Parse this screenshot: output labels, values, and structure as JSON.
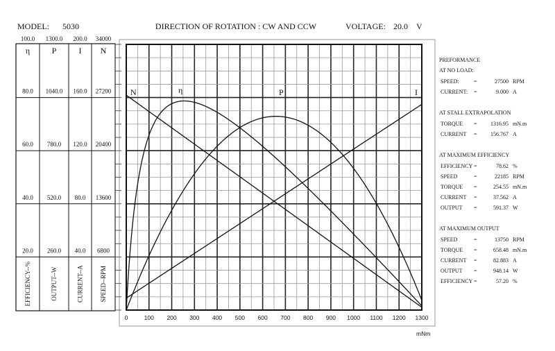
{
  "header": {
    "model_label": "MODEL:",
    "model_value": "5030",
    "direction": "DIRECTION OF ROTATION : CW AND CCW",
    "voltage_label": "VOLTAGE:",
    "voltage_value": "20.0",
    "voltage_unit": "V"
  },
  "left_axes": [
    {
      "max": "100.0",
      "symbol": "η",
      "ticks": [
        "80.0",
        "60.0",
        "40.0",
        "20.0"
      ],
      "label": "EFFICIENCY--%"
    },
    {
      "max": "1300.0",
      "symbol": "P",
      "ticks": [
        "1040.0",
        "780.0",
        "520.0",
        "260.0"
      ],
      "label": "OUTPUT--W"
    },
    {
      "max": "200.0",
      "symbol": "I",
      "ticks": [
        "160.0",
        "120.0",
        "80.0",
        "40.0"
      ],
      "label": "CURRENT--A"
    },
    {
      "max": "34000",
      "symbol": "N",
      "ticks": [
        "27200",
        "20400",
        "13600",
        "6800"
      ],
      "label": "SPEED--RPM"
    }
  ],
  "performance": {
    "title": "PREFORMANCE",
    "sections": [
      {
        "heading": "AT NO LOAD:",
        "rows": [
          {
            "label": "SPEED:",
            "eq": "=",
            "value": "27500",
            "unit": "RPM"
          },
          {
            "label": "CURRENT:",
            "eq": "=",
            "value": "9.000",
            "unit": "A"
          }
        ]
      },
      {
        "heading": "AT STALL EXTRAPOLATION",
        "rows": [
          {
            "label": "TORQUE",
            "eq": "=",
            "value": "1316.95",
            "unit": "mN.m"
          },
          {
            "label": "CURRENT",
            "eq": "=",
            "value": "156.767",
            "unit": "A"
          }
        ]
      },
      {
        "heading": "AT MAXIMUM EFFICIENCY",
        "rows": [
          {
            "label": "EFFICIENCY",
            "eq": "=",
            "value": "78.62",
            "unit": "%"
          },
          {
            "label": "SPEED",
            "eq": "=",
            "value": "22185",
            "unit": "RPM"
          },
          {
            "label": "TORQUE",
            "eq": "=",
            "value": "254.55",
            "unit": "mN.m"
          },
          {
            "label": "CURRENT",
            "eq": "=",
            "value": "37.562",
            "unit": "A"
          },
          {
            "label": "OUTPUT",
            "eq": "=",
            "value": "591.37",
            "unit": "W"
          }
        ]
      },
      {
        "heading": "AT MAXIMUM OUTPUT",
        "rows": [
          {
            "label": "SPEED",
            "eq": "=",
            "value": "13750",
            "unit": "RPM"
          },
          {
            "label": "TORQUE",
            "eq": "=",
            "value": "658.48",
            "unit": "mN.m"
          },
          {
            "label": "CURRENT",
            "eq": "=",
            "value": "82.883",
            "unit": "A"
          },
          {
            "label": "OUTPUT",
            "eq": "=",
            "value": "948.14",
            "unit": "W"
          },
          {
            "label": "EFFICIENCY",
            "eq": "=",
            "value": "57.20",
            "unit": "%"
          }
        ]
      }
    ]
  },
  "chart_data": {
    "type": "line",
    "xlabel": "mNm",
    "xlim": [
      0,
      1300
    ],
    "x_ticks": [
      "0",
      "100",
      "200",
      "300",
      "400",
      "500",
      "600",
      "700",
      "800",
      "900",
      "1000",
      "1100",
      "1200",
      "1300"
    ],
    "ylim_percent": [
      0,
      100
    ],
    "grid": true,
    "model": {
      "voltage": 20.0,
      "no_load_speed": 27500,
      "no_load_current": 9.0,
      "stall_torque": 1316.95,
      "stall_current": 156.767
    },
    "series": [
      {
        "name": "N",
        "label": "N",
        "unit": "RPM",
        "scale_max": 34000,
        "x": [
          0,
          1316.95
        ],
        "y": [
          27500,
          0
        ]
      },
      {
        "name": "I",
        "label": "I",
        "unit": "A",
        "scale_max": 200,
        "x": [
          0,
          1300
        ],
        "y": [
          9.0,
          154.87
        ]
      },
      {
        "name": "P",
        "label": "P",
        "unit": "W",
        "scale_max": 1300,
        "x": [
          0,
          100,
          200,
          300,
          400,
          500,
          600,
          658.48,
          700,
          800,
          900,
          1000,
          1100,
          1200,
          1300
        ],
        "y": [
          0,
          267.5,
          483.3,
          647.4,
          760.0,
          821.0,
          830.5,
          948.14,
          917.5,
          843.5,
          727.8,
          570.4,
          371.4,
          130.6,
          -150
        ]
      },
      {
        "name": "η",
        "label": "η",
        "unit": "%",
        "scale_max": 100,
        "x": [
          0,
          254.55,
          658.48,
          1316.95
        ],
        "y": [
          0,
          78.62,
          57.2,
          0
        ]
      }
    ]
  }
}
